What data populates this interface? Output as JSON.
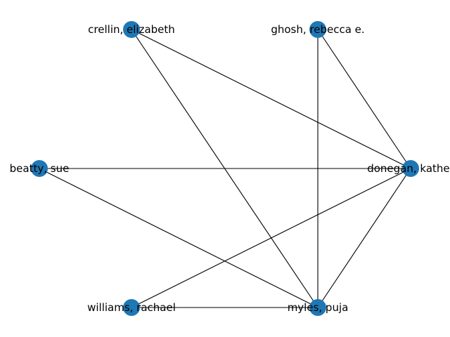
{
  "graph": {
    "node_color": "#1f77b4",
    "edge_color": "#000000",
    "nodes": [
      {
        "id": "crellin",
        "label": "crellin, elizabeth"
      },
      {
        "id": "ghosh",
        "label": "ghosh, rebecca e."
      },
      {
        "id": "beatty",
        "label": "beatty, sue"
      },
      {
        "id": "donegan",
        "label": "donegan, kather"
      },
      {
        "id": "williams",
        "label": "williams, rachael"
      },
      {
        "id": "myles",
        "label": "myles, puja"
      }
    ],
    "edges": [
      [
        "crellin",
        "donegan"
      ],
      [
        "crellin",
        "myles"
      ],
      [
        "ghosh",
        "donegan"
      ],
      [
        "ghosh",
        "myles"
      ],
      [
        "beatty",
        "donegan"
      ],
      [
        "beatty",
        "myles"
      ],
      [
        "williams",
        "donegan"
      ],
      [
        "williams",
        "myles"
      ],
      [
        "donegan",
        "myles"
      ]
    ]
  }
}
